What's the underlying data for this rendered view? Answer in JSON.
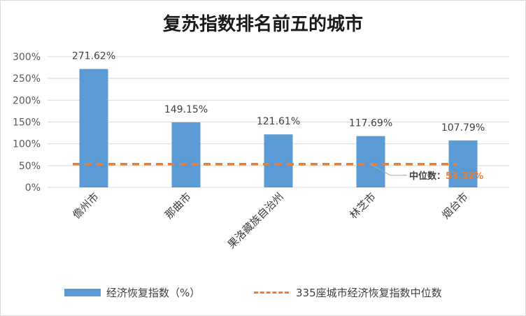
{
  "chart_data": {
    "type": "bar",
    "title": "复苏指数排名前五的城市",
    "categories": [
      "儋州市",
      "那曲市",
      "果洛藏族自治州",
      "林芝市",
      "烟台市"
    ],
    "series": [
      {
        "name": "经济恢复指数（%）",
        "values": [
          271.62,
          149.15,
          121.61,
          117.69,
          107.79
        ],
        "labels": [
          "271.62%",
          "149.15%",
          "121.61%",
          "117.69%",
          "107.79%"
        ],
        "color": "#5b9bd5"
      },
      {
        "name": "335座城市经济恢复指数中位数",
        "type": "line",
        "value": 53.32,
        "color": "#ed7d31"
      }
    ],
    "yticks": [
      "0%",
      "50%",
      "100%",
      "150%",
      "200%",
      "250%",
      "300%"
    ],
    "ylim": [
      0,
      300
    ],
    "annotation": {
      "label": "中位数：",
      "value": "53.32%"
    },
    "legend_position": "bottom",
    "grid": true
  }
}
